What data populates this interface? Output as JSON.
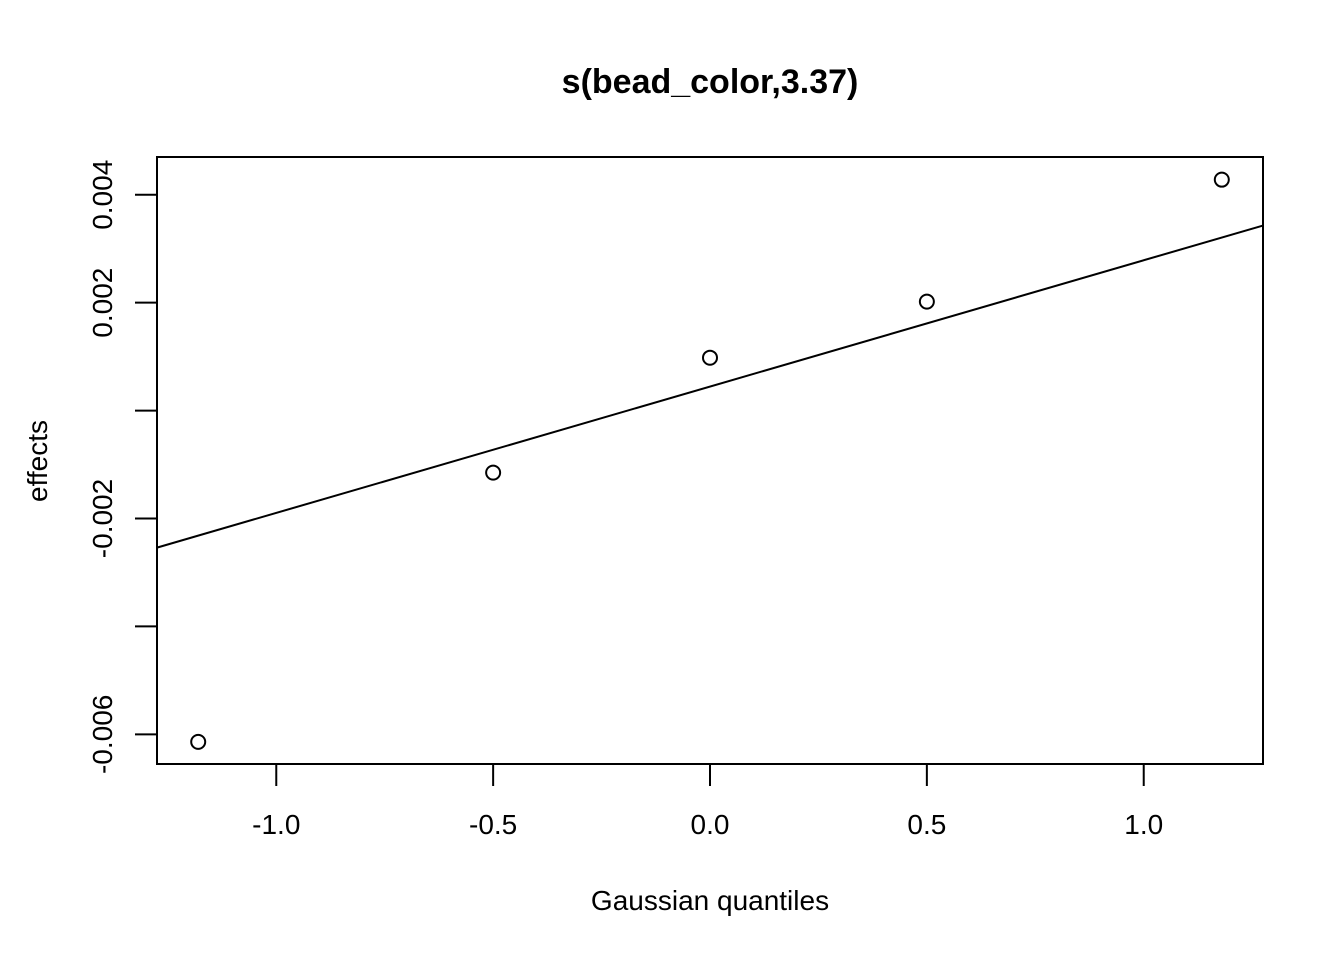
{
  "chart_data": {
    "type": "scatter",
    "title": "s(bead_color,3.37)",
    "xlabel": "Gaussian quantiles",
    "ylabel": "effects",
    "xlim": [
      -1.275,
      1.275
    ],
    "ylim": [
      -0.00655,
      0.0047
    ],
    "grid": false,
    "x_ticks": [
      -1.0,
      -0.5,
      0.0,
      0.5,
      1.0
    ],
    "x_tick_labels": [
      "-1.0",
      "-0.5",
      "0.0",
      "0.5",
      "1.0"
    ],
    "y_ticks": [
      -0.006,
      -0.004,
      -0.002,
      0.0,
      0.002,
      0.004
    ],
    "y_tick_labels": [
      "-0.006",
      "",
      "-0.002",
      "",
      "0.002",
      "0.004"
    ],
    "points": [
      {
        "x": -1.18,
        "y": -0.00614
      },
      {
        "x": -0.5,
        "y": -0.00115
      },
      {
        "x": 0.0,
        "y": 0.00098
      },
      {
        "x": 0.5,
        "y": 0.00202
      },
      {
        "x": 1.18,
        "y": 0.00428
      }
    ],
    "reference_line": {
      "x": [
        -1.275,
        1.275
      ],
      "y": [
        -0.00254,
        0.00343
      ]
    }
  }
}
